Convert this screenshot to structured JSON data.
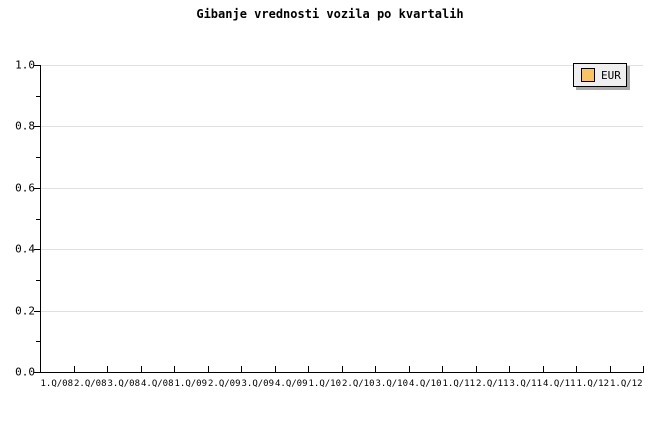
{
  "title": "Gibanje vrednosti vozila po kvartalih",
  "legend": {
    "position": "top-right",
    "items": [
      {
        "label": "EUR",
        "color": "#FAC465"
      }
    ]
  },
  "colors": {
    "background": "#FFFFFF",
    "axis": "#000000",
    "grid": "#E0E0E0",
    "text": "#000000",
    "legend_bg": "#EFEFEF",
    "legend_border": "#000000",
    "legend_shadow": "#A9A9A9"
  },
  "y_axis": {
    "tick_labels": [
      "0.0",
      "0.2",
      "0.4",
      "0.6",
      "0.8",
      "1.0"
    ],
    "minor_ticks": [
      0.1,
      0.3,
      0.5,
      0.7,
      0.9
    ],
    "range": [
      0,
      1
    ]
  },
  "x_axis": {
    "categories": [
      "1.Q/08",
      "2.Q/08",
      "3.Q/08",
      "4.Q/08",
      "1.Q/09",
      "2.Q/09",
      "3.Q/09",
      "4.Q/09",
      "1.Q/10",
      "2.Q/10",
      "3.Q/10",
      "4.Q/10",
      "1.Q/11",
      "2.Q/11",
      "3.Q/11",
      "4.Q/11",
      "1.Q/12",
      "1.Q/12"
    ]
  },
  "chart_data": {
    "type": "line",
    "title": "Gibanje vrednosti vozila po kvartalih",
    "categories": [
      "1.Q/08",
      "2.Q/08",
      "3.Q/08",
      "4.Q/08",
      "1.Q/09",
      "2.Q/09",
      "3.Q/09",
      "4.Q/09",
      "1.Q/10",
      "2.Q/10",
      "3.Q/10",
      "4.Q/10",
      "1.Q/11",
      "2.Q/11",
      "3.Q/11",
      "4.Q/11",
      "1.Q/12",
      "1.Q/12"
    ],
    "series": [
      {
        "name": "EUR",
        "values": []
      }
    ],
    "xlabel": "",
    "ylabel": "",
    "ylim": [
      0,
      1
    ],
    "yticks": [
      0,
      0.2,
      0.4,
      0.6,
      0.8,
      1.0
    ],
    "grid": "horizontal-major",
    "legend_position": "top-right"
  }
}
